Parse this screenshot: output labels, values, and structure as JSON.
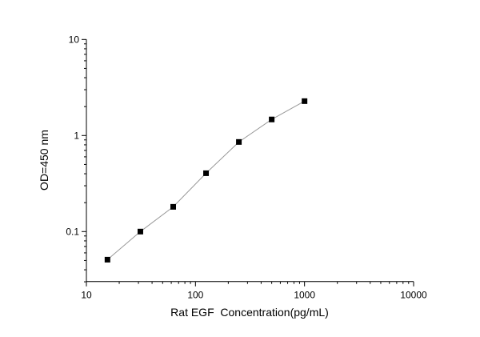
{
  "chart_data": {
    "type": "line",
    "title": "",
    "xlabel": "Rat EGF  Concentration(pg/mL)",
    "ylabel": "OD=450 nm",
    "x_scale": "log",
    "y_scale": "log",
    "xlim": [
      10,
      10000
    ],
    "ylim": [
      0.03,
      10
    ],
    "x_ticks": [
      "10",
      "100",
      "1000",
      "10000"
    ],
    "y_ticks": [
      "0.1",
      "1",
      "10"
    ],
    "grid": false,
    "markers": "square",
    "series": [
      {
        "x": [
          15.6,
          31.25,
          62.5,
          125,
          250,
          500,
          1000
        ],
        "y": [
          0.051,
          0.1,
          0.181,
          0.405,
          0.857,
          1.47,
          2.28
        ]
      }
    ],
    "colors": {
      "marker": "#000000",
      "line": "#999999",
      "axis": "#000000"
    }
  }
}
